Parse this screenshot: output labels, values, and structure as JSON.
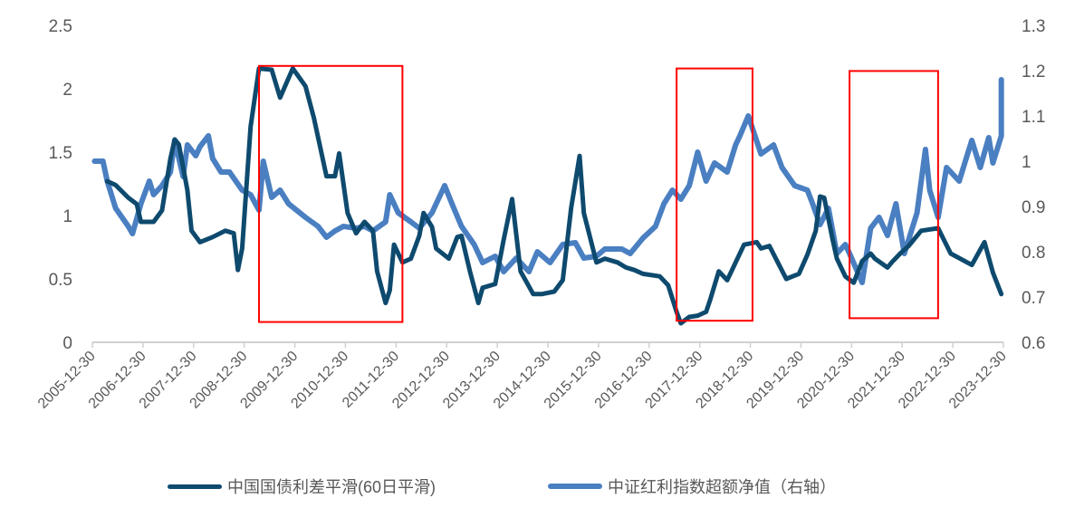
{
  "chart_data": {
    "type": "line",
    "title": "",
    "xlabel": "",
    "ylabel": "",
    "y2label": "",
    "x_tick_labels": [
      "2005-12-30",
      "2006-12-30",
      "2007-12-30",
      "2008-12-30",
      "2009-12-30",
      "2010-12-30",
      "2011-12-30",
      "2012-12-30",
      "2013-12-30",
      "2014-12-30",
      "2015-12-30",
      "2016-12-30",
      "2017-12-30",
      "2018-12-30",
      "2019-12-30",
      "2020-12-30",
      "2021-12-30",
      "2022-12-30",
      "2023-12-30"
    ],
    "xlim": [
      "2005-12-30",
      "2023-12-30"
    ],
    "ylim": [
      0,
      2.5
    ],
    "y_ticks": [
      "0",
      "0.5",
      "1",
      "1.5",
      "2",
      "2.5"
    ],
    "y2lim": [
      0.6,
      1.3
    ],
    "y2_ticks": [
      "0.6",
      "0.7",
      "0.8",
      "0.9",
      "1",
      "1.1",
      "1.2",
      "1.3"
    ],
    "grid": false,
    "legend_position": "bottom",
    "series": [
      {
        "name": "中国国债利差平滑(60日平滑)",
        "axis": "left",
        "color": "#0e4a6e",
        "x": [
          "2006-04",
          "2006-06",
          "2006-09",
          "2006-11",
          "2006-12",
          "2007-03",
          "2007-05",
          "2007-07",
          "2007-08",
          "2007-09",
          "2007-11",
          "2007-12",
          "2008-02",
          "2008-05",
          "2008-08",
          "2008-10",
          "2008-11",
          "2008-12",
          "2009-02",
          "2009-04",
          "2009-07",
          "2009-09",
          "2009-12",
          "2010-03",
          "2010-05",
          "2010-08",
          "2010-10",
          "2010-11",
          "2011-01",
          "2011-03",
          "2011-05",
          "2011-07",
          "2011-08",
          "2011-10",
          "2011-11",
          "2011-12",
          "2012-02",
          "2012-04",
          "2012-06",
          "2012-07",
          "2012-09",
          "2012-10",
          "2013-01",
          "2013-03",
          "2013-04",
          "2013-06",
          "2013-08",
          "2013-09",
          "2013-12",
          "2014-02",
          "2014-04",
          "2014-06",
          "2014-09",
          "2014-11",
          "2015-02",
          "2015-04",
          "2015-06",
          "2015-08",
          "2015-09",
          "2015-12",
          "2016-02",
          "2016-05",
          "2016-07",
          "2016-09",
          "2016-11",
          "2017-03",
          "2017-05",
          "2017-07",
          "2017-08",
          "2017-10",
          "2017-12",
          "2018-02",
          "2018-03",
          "2018-05",
          "2018-07",
          "2018-09",
          "2018-11",
          "2019-02",
          "2019-03",
          "2019-05",
          "2019-07",
          "2019-09",
          "2019-12",
          "2020-02",
          "2020-04",
          "2020-05",
          "2020-06",
          "2020-08",
          "2020-09",
          "2020-11",
          "2021-01",
          "2021-03",
          "2021-05",
          "2021-06",
          "2021-09",
          "2021-10",
          "2021-12",
          "2022-02",
          "2022-05",
          "2022-09",
          "2022-12",
          "2023-05",
          "2023-08",
          "2023-10",
          "2023-12"
        ],
        "values": [
          1.27,
          1.24,
          1.14,
          1.09,
          0.95,
          0.95,
          1.04,
          1.45,
          1.6,
          1.56,
          1.2,
          0.88,
          0.79,
          0.83,
          0.88,
          0.86,
          0.57,
          0.74,
          1.7,
          2.16,
          2.15,
          1.93,
          2.16,
          2.02,
          1.77,
          1.31,
          1.31,
          1.49,
          1.02,
          0.86,
          0.95,
          0.88,
          0.56,
          0.31,
          0.41,
          0.77,
          0.63,
          0.66,
          0.84,
          1.02,
          0.91,
          0.74,
          0.66,
          0.83,
          0.84,
          0.56,
          0.31,
          0.43,
          0.46,
          0.81,
          1.13,
          0.56,
          0.38,
          0.38,
          0.4,
          0.49,
          1.06,
          1.47,
          1.02,
          0.63,
          0.66,
          0.63,
          0.59,
          0.57,
          0.54,
          0.52,
          0.45,
          0.24,
          0.15,
          0.2,
          0.21,
          0.24,
          0.34,
          0.56,
          0.49,
          0.63,
          0.77,
          0.79,
          0.74,
          0.76,
          0.63,
          0.5,
          0.54,
          0.69,
          0.88,
          1.15,
          1.14,
          0.81,
          0.66,
          0.52,
          0.47,
          0.64,
          0.7,
          0.66,
          0.59,
          0.63,
          0.7,
          0.76,
          0.88,
          0.9,
          0.7,
          0.61,
          0.79,
          0.55,
          0.38
        ]
      },
      {
        "name": "中证红利指数超额净值（右轴）",
        "axis": "right",
        "color": "#4a7fc1",
        "x": [
          "2006-01",
          "2006-03",
          "2006-04",
          "2006-06",
          "2006-09",
          "2006-10",
          "2006-12",
          "2007-02",
          "2007-03",
          "2007-05",
          "2007-07",
          "2007-08",
          "2007-10",
          "2007-11",
          "2008-01",
          "2008-02",
          "2008-04",
          "2008-05",
          "2008-07",
          "2008-09",
          "2008-12",
          "2009-02",
          "2009-04",
          "2009-05",
          "2009-07",
          "2009-09",
          "2009-11",
          "2010-03",
          "2010-06",
          "2010-08",
          "2010-10",
          "2010-12",
          "2011-03",
          "2011-05",
          "2011-07",
          "2011-10",
          "2011-11",
          "2012-01",
          "2012-04",
          "2012-06",
          "2012-09",
          "2012-12",
          "2013-02",
          "2013-04",
          "2013-07",
          "2013-09",
          "2013-12",
          "2014-02",
          "2014-05",
          "2014-08",
          "2014-10",
          "2015-01",
          "2015-04",
          "2015-07",
          "2015-09",
          "2015-12",
          "2016-02",
          "2016-06",
          "2016-08",
          "2016-11",
          "2017-02",
          "2017-04",
          "2017-06",
          "2017-08",
          "2017-10",
          "2017-12",
          "2018-02",
          "2018-04",
          "2018-07",
          "2018-09",
          "2018-10",
          "2018-12",
          "2019-03",
          "2019-06",
          "2019-08",
          "2019-11",
          "2020-02",
          "2020-03",
          "2020-05",
          "2020-07",
          "2020-09",
          "2020-11",
          "2020-12",
          "2021-03",
          "2021-05",
          "2021-07",
          "2021-09",
          "2021-11",
          "2022-01",
          "2022-04",
          "2022-06",
          "2022-07",
          "2022-09",
          "2022-11",
          "2023-02",
          "2023-03",
          "2023-05",
          "2023-07",
          "2023-09",
          "2023-10",
          "2023-12",
          "2023-12"
        ],
        "values": [
          1.0,
          1.0,
          0.956,
          0.896,
          0.856,
          0.84,
          0.906,
          0.956,
          0.926,
          0.946,
          0.976,
          1.046,
          0.966,
          1.036,
          1.012,
          1.032,
          1.056,
          1.006,
          0.976,
          0.976,
          0.936,
          0.926,
          0.892,
          1.0,
          0.92,
          0.936,
          0.906,
          0.876,
          0.856,
          0.832,
          0.846,
          0.856,
          0.852,
          0.856,
          0.846,
          0.866,
          0.926,
          0.886,
          0.866,
          0.852,
          0.886,
          0.946,
          0.9,
          0.856,
          0.816,
          0.776,
          0.79,
          0.756,
          0.786,
          0.756,
          0.8,
          0.776,
          0.816,
          0.82,
          0.786,
          0.79,
          0.806,
          0.806,
          0.796,
          0.83,
          0.856,
          0.906,
          0.936,
          0.916,
          0.946,
          1.02,
          0.956,
          0.996,
          0.976,
          1.036,
          1.056,
          1.1,
          1.016,
          1.036,
          0.986,
          0.946,
          0.936,
          0.912,
          0.86,
          0.896,
          0.796,
          0.816,
          0.796,
          0.732,
          0.852,
          0.876,
          0.836,
          0.906,
          0.796,
          0.886,
          1.026,
          0.936,
          0.876,
          0.986,
          0.956,
          0.986,
          1.046,
          0.986,
          1.052,
          0.996,
          1.056,
          1.18
        ]
      }
    ],
    "annotations": [
      {
        "type": "rectangle",
        "color": "#ff0000",
        "x_range": [
          "2009-04",
          "2012-02"
        ],
        "y_range": [
          0.16,
          2.18
        ]
      },
      {
        "type": "rectangle",
        "color": "#ff0000",
        "x_range": [
          "2017-07",
          "2019-01"
        ],
        "y_range": [
          0.17,
          2.16
        ]
      },
      {
        "type": "rectangle",
        "color": "#ff0000",
        "x_range": [
          "2020-12",
          "2022-09"
        ],
        "y_range": [
          0.19,
          2.14
        ]
      }
    ]
  },
  "legend": {
    "items": [
      {
        "label": "中国国债利差平滑(60日平滑)",
        "color": "#0e4a6e"
      },
      {
        "label": "中证红利指数超额净值（右轴）",
        "color": "#4a7fc1"
      }
    ]
  }
}
